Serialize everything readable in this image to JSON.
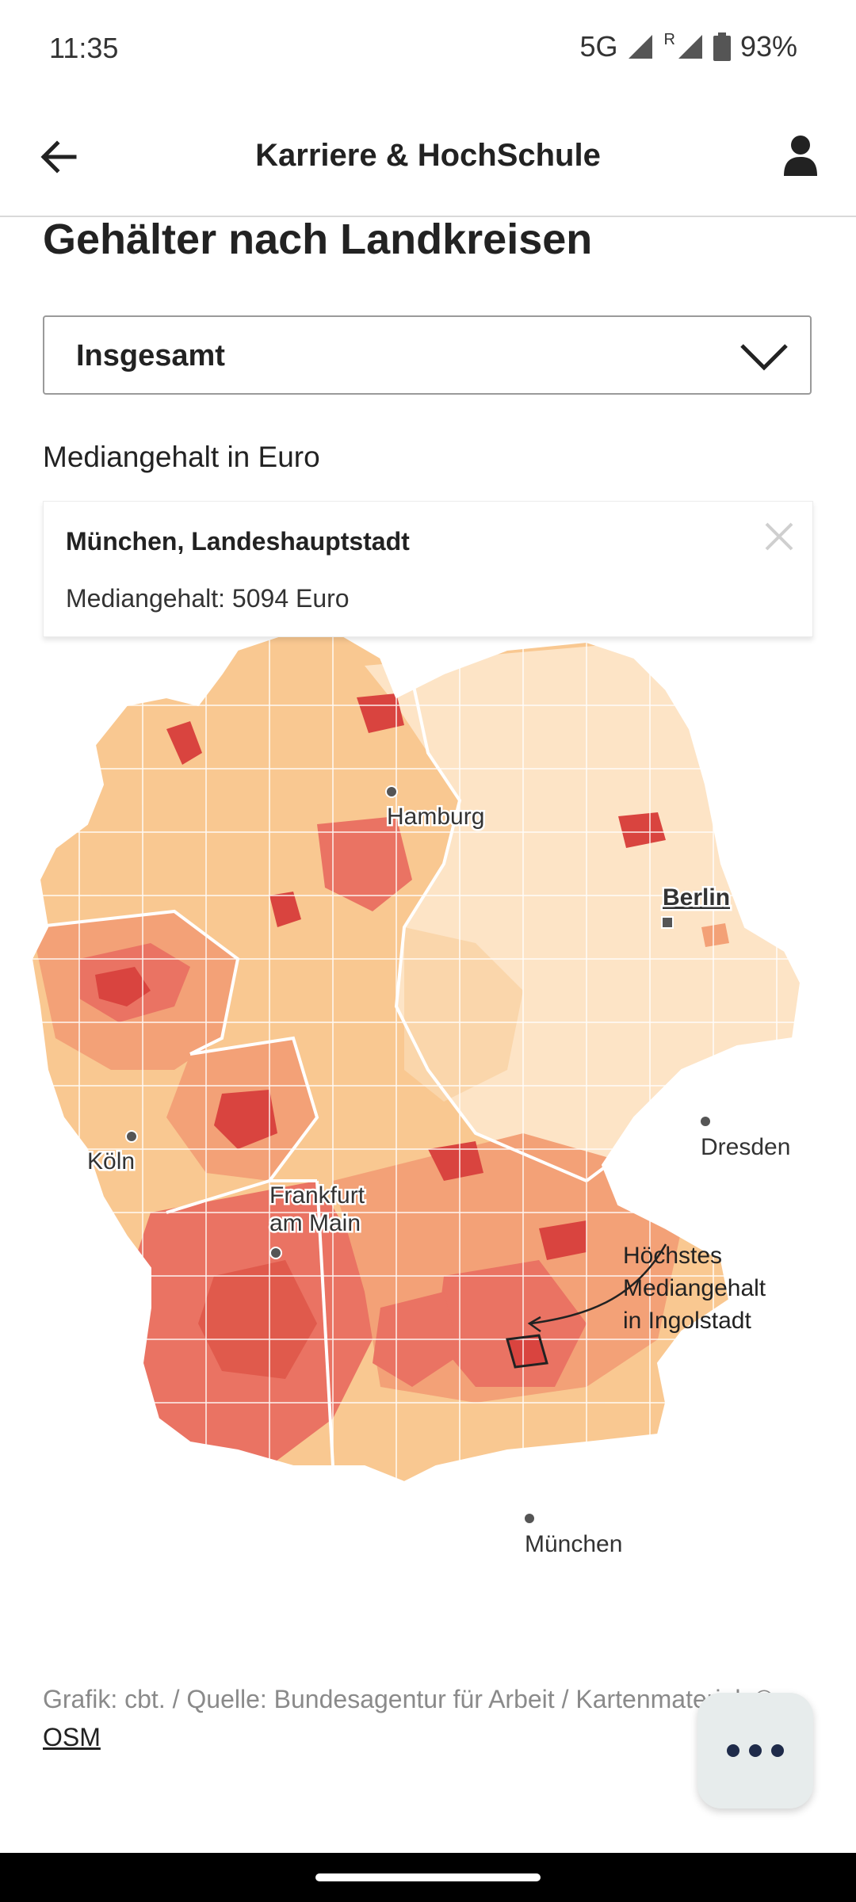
{
  "status": {
    "time": "11:35",
    "network": "5G",
    "roaming": "R",
    "battery": "93%"
  },
  "app_bar": {
    "title": "Karriere & HochSchule"
  },
  "section": {
    "heading": "Gehälter nach Landkreisen"
  },
  "filter": {
    "selected": "Insgesamt"
  },
  "map": {
    "subtitle": "Mediangehalt in Euro",
    "tooltip": {
      "title": "München, Landeshauptstadt",
      "text": "Mediangehalt: 5094 Euro"
    },
    "cities": {
      "hamburg": "Hamburg",
      "berlin": "Berlin",
      "dresden": "Dresden",
      "koeln": "Köln",
      "frankfurt_1": "Frankfurt",
      "frankfurt_2": "am Main",
      "muenchen": "München"
    },
    "annotation": {
      "line1": "Höchstes",
      "line2": "Mediangehalt",
      "line3": "in Ingolstadt"
    },
    "colors": {
      "lightest": "#fde4c6",
      "light": "#f9c891",
      "mid": "#f3a177",
      "high": "#ea7363",
      "highest": "#d9443f"
    }
  },
  "source": {
    "text": "Grafik: cbt. / Quelle: Bundesagentur für Arbeit / Kartenmaterial: ©",
    "link": "OSM"
  }
}
